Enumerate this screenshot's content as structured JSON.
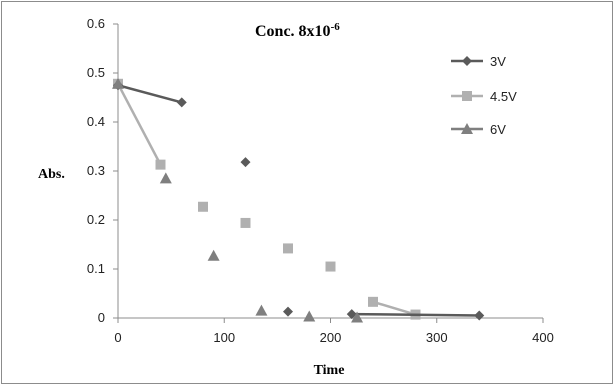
{
  "chart_data": {
    "type": "scatter",
    "title": "Conc. 8x10",
    "title_superscript": "-6",
    "xlabel": "Time",
    "ylabel": "Abs.",
    "xlim": [
      0,
      400
    ],
    "ylim": [
      0,
      0.6
    ],
    "x_ticks": [
      "0",
      "100",
      "200",
      "300",
      "400"
    ],
    "y_ticks": [
      "0",
      "0.1",
      "0.2",
      "0.3",
      "0.4",
      "0.5",
      "0.6"
    ],
    "grid": false,
    "legend_position": "right",
    "series": [
      {
        "name": "3V",
        "marker": "diamond",
        "color": "#5a5a5a",
        "points": [
          [
            0,
            0.475
          ],
          [
            60,
            0.44
          ],
          [
            120,
            0.318
          ],
          [
            160,
            0.013
          ],
          [
            220,
            0.008
          ],
          [
            340,
            0.005
          ]
        ],
        "line_segments": [
          [
            0,
            1
          ],
          [
            4,
            5
          ]
        ]
      },
      {
        "name": "4.5V",
        "marker": "square",
        "color": "#b0b0b0",
        "points": [
          [
            0,
            0.478
          ],
          [
            40,
            0.313
          ],
          [
            80,
            0.227
          ],
          [
            120,
            0.194
          ],
          [
            160,
            0.142
          ],
          [
            200,
            0.105
          ],
          [
            240,
            0.033
          ],
          [
            280,
            0.007
          ]
        ],
        "line_segments": [
          [
            0,
            1
          ],
          [
            6,
            7
          ]
        ]
      },
      {
        "name": "6V",
        "marker": "triangle",
        "color": "#7f7f7f",
        "points": [
          [
            0,
            0.478
          ],
          [
            45,
            0.285
          ],
          [
            90,
            0.127
          ],
          [
            135,
            0.015
          ],
          [
            180,
            0.003
          ],
          [
            225,
            0.001
          ]
        ],
        "line_segments": []
      }
    ]
  }
}
